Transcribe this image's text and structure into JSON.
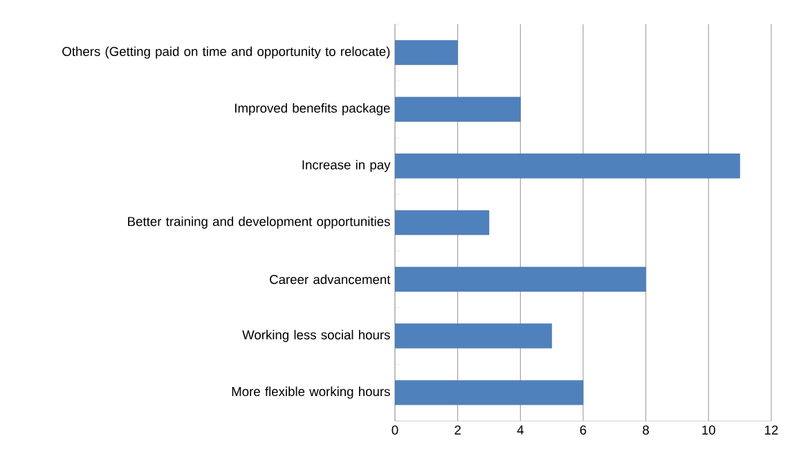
{
  "chart_data": {
    "type": "bar",
    "orientation": "horizontal",
    "categories": [
      "Others (Getting paid on time and opportunity to relocate)",
      "Improved benefits package",
      "Increase in pay",
      "Better training and development opportunities",
      "Career advancement",
      "Working less social hours",
      "More flexible working hours"
    ],
    "values": [
      2,
      4,
      11,
      3,
      8,
      5,
      6
    ],
    "color": "#4f81bd",
    "xlim": [
      0,
      12
    ],
    "xticks": [
      0,
      2,
      4,
      6,
      8,
      10,
      12
    ],
    "grid": "x"
  }
}
